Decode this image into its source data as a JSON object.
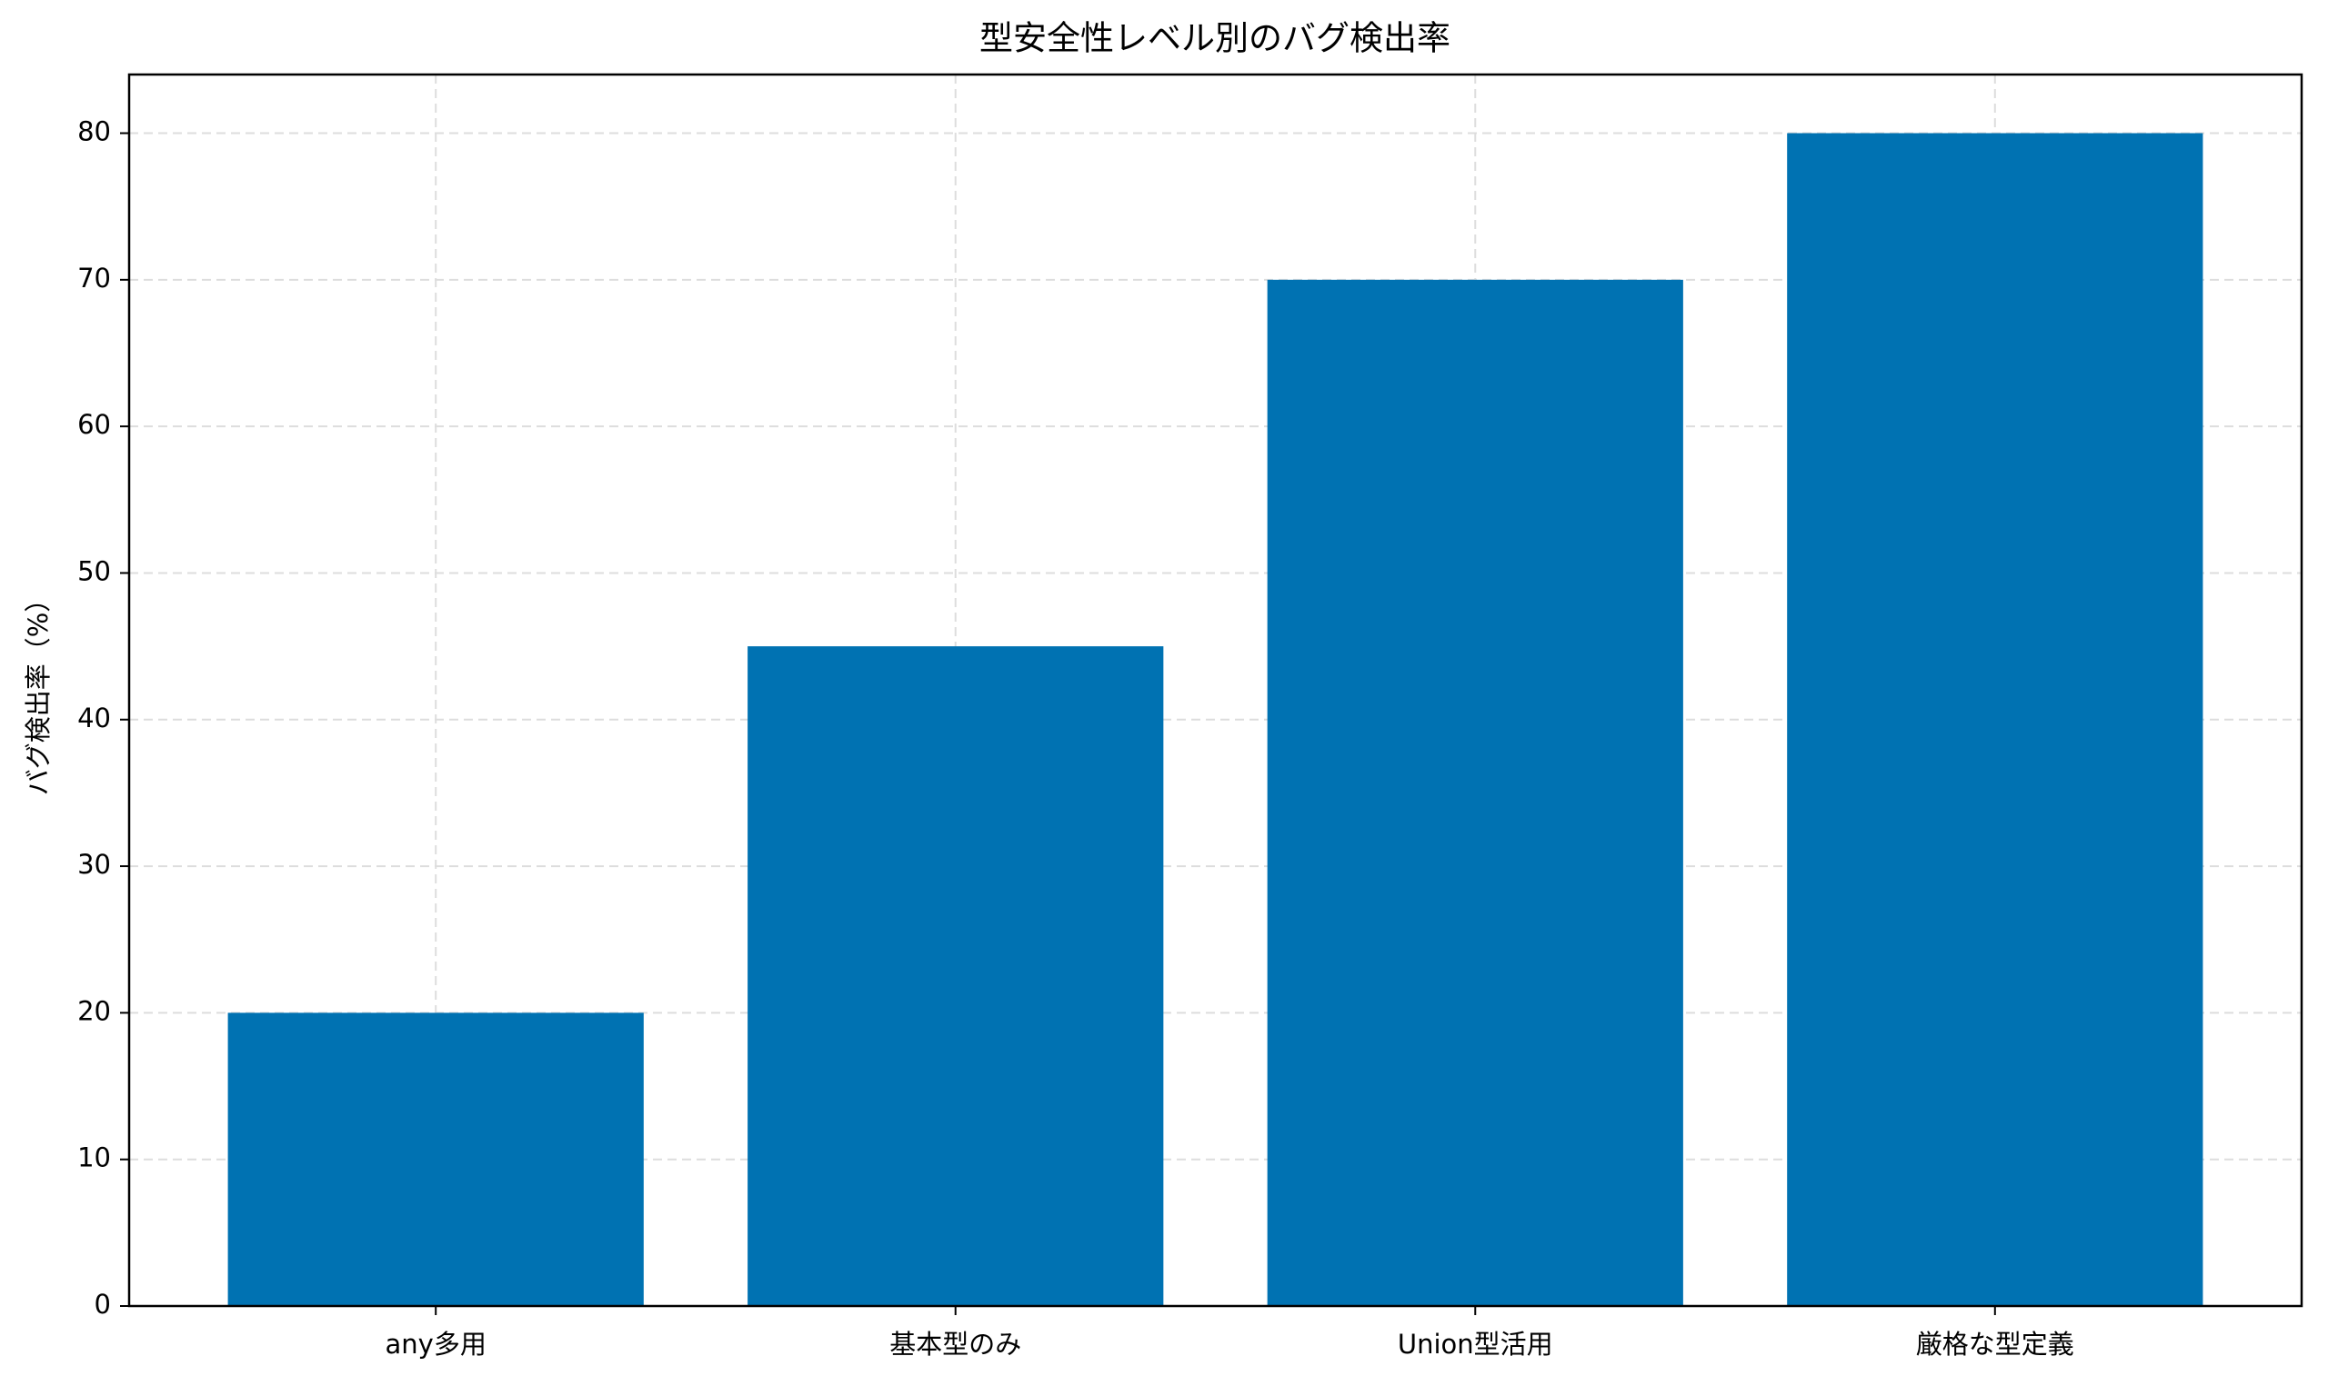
{
  "chart_data": {
    "type": "bar",
    "title": "型安全性レベル別のバグ検出率",
    "ylabel": "バグ検出率（%）",
    "categories": [
      "any多用",
      "基本型のみ",
      "Union型活用",
      "厳格な型定義"
    ],
    "values": [
      20,
      45,
      70,
      80
    ],
    "color": "#0072b2",
    "ylim": [
      0,
      84
    ],
    "yticks": [
      0,
      10,
      20,
      30,
      40,
      50,
      60,
      70,
      80
    ],
    "grid": true
  }
}
